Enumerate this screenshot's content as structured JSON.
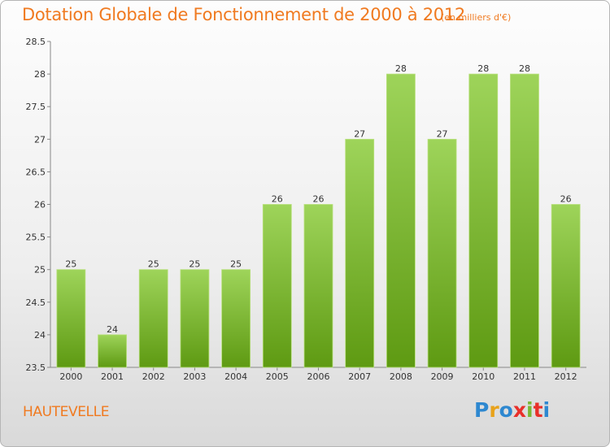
{
  "title": "Dotation Globale de Fonctionnement de 2000 à 2012",
  "subtitle": "(en milliers d'€)",
  "commune": "HAUTEVELLE",
  "brand": {
    "letters": [
      "P",
      "r",
      "o",
      "x",
      "i",
      "t",
      "i"
    ],
    "colors": [
      "#2e88d0",
      "#e8a21a",
      "#2e88d0",
      "#e8302a",
      "#79b833",
      "#e8302a",
      "#2e88d0"
    ]
  },
  "colors": {
    "accent": "#f07a20",
    "bar_light": "#9ed45a",
    "bar_dark": "#5e9a12"
  },
  "chart_data": {
    "type": "bar",
    "categories": [
      "2000",
      "2001",
      "2002",
      "2003",
      "2004",
      "2005",
      "2006",
      "2007",
      "2008",
      "2009",
      "2010",
      "2011",
      "2012"
    ],
    "values": [
      25,
      24,
      25,
      25,
      25,
      26,
      26,
      27,
      28,
      27,
      28,
      28,
      26
    ],
    "data_labels": [
      "25",
      "24",
      "25",
      "25",
      "25",
      "26",
      "26",
      "27",
      "28",
      "27",
      "28",
      "28",
      "26"
    ],
    "yticks": [
      "23.5",
      "24",
      "24.5",
      "25",
      "25.5",
      "26",
      "26.5",
      "27",
      "27.5",
      "28",
      "28.5"
    ],
    "ylim": [
      23.5,
      28.5
    ],
    "title": "Dotation Globale de Fonctionnement de 2000 à 2012",
    "xlabel": "",
    "ylabel": "",
    "grid": false,
    "legend": "none"
  }
}
